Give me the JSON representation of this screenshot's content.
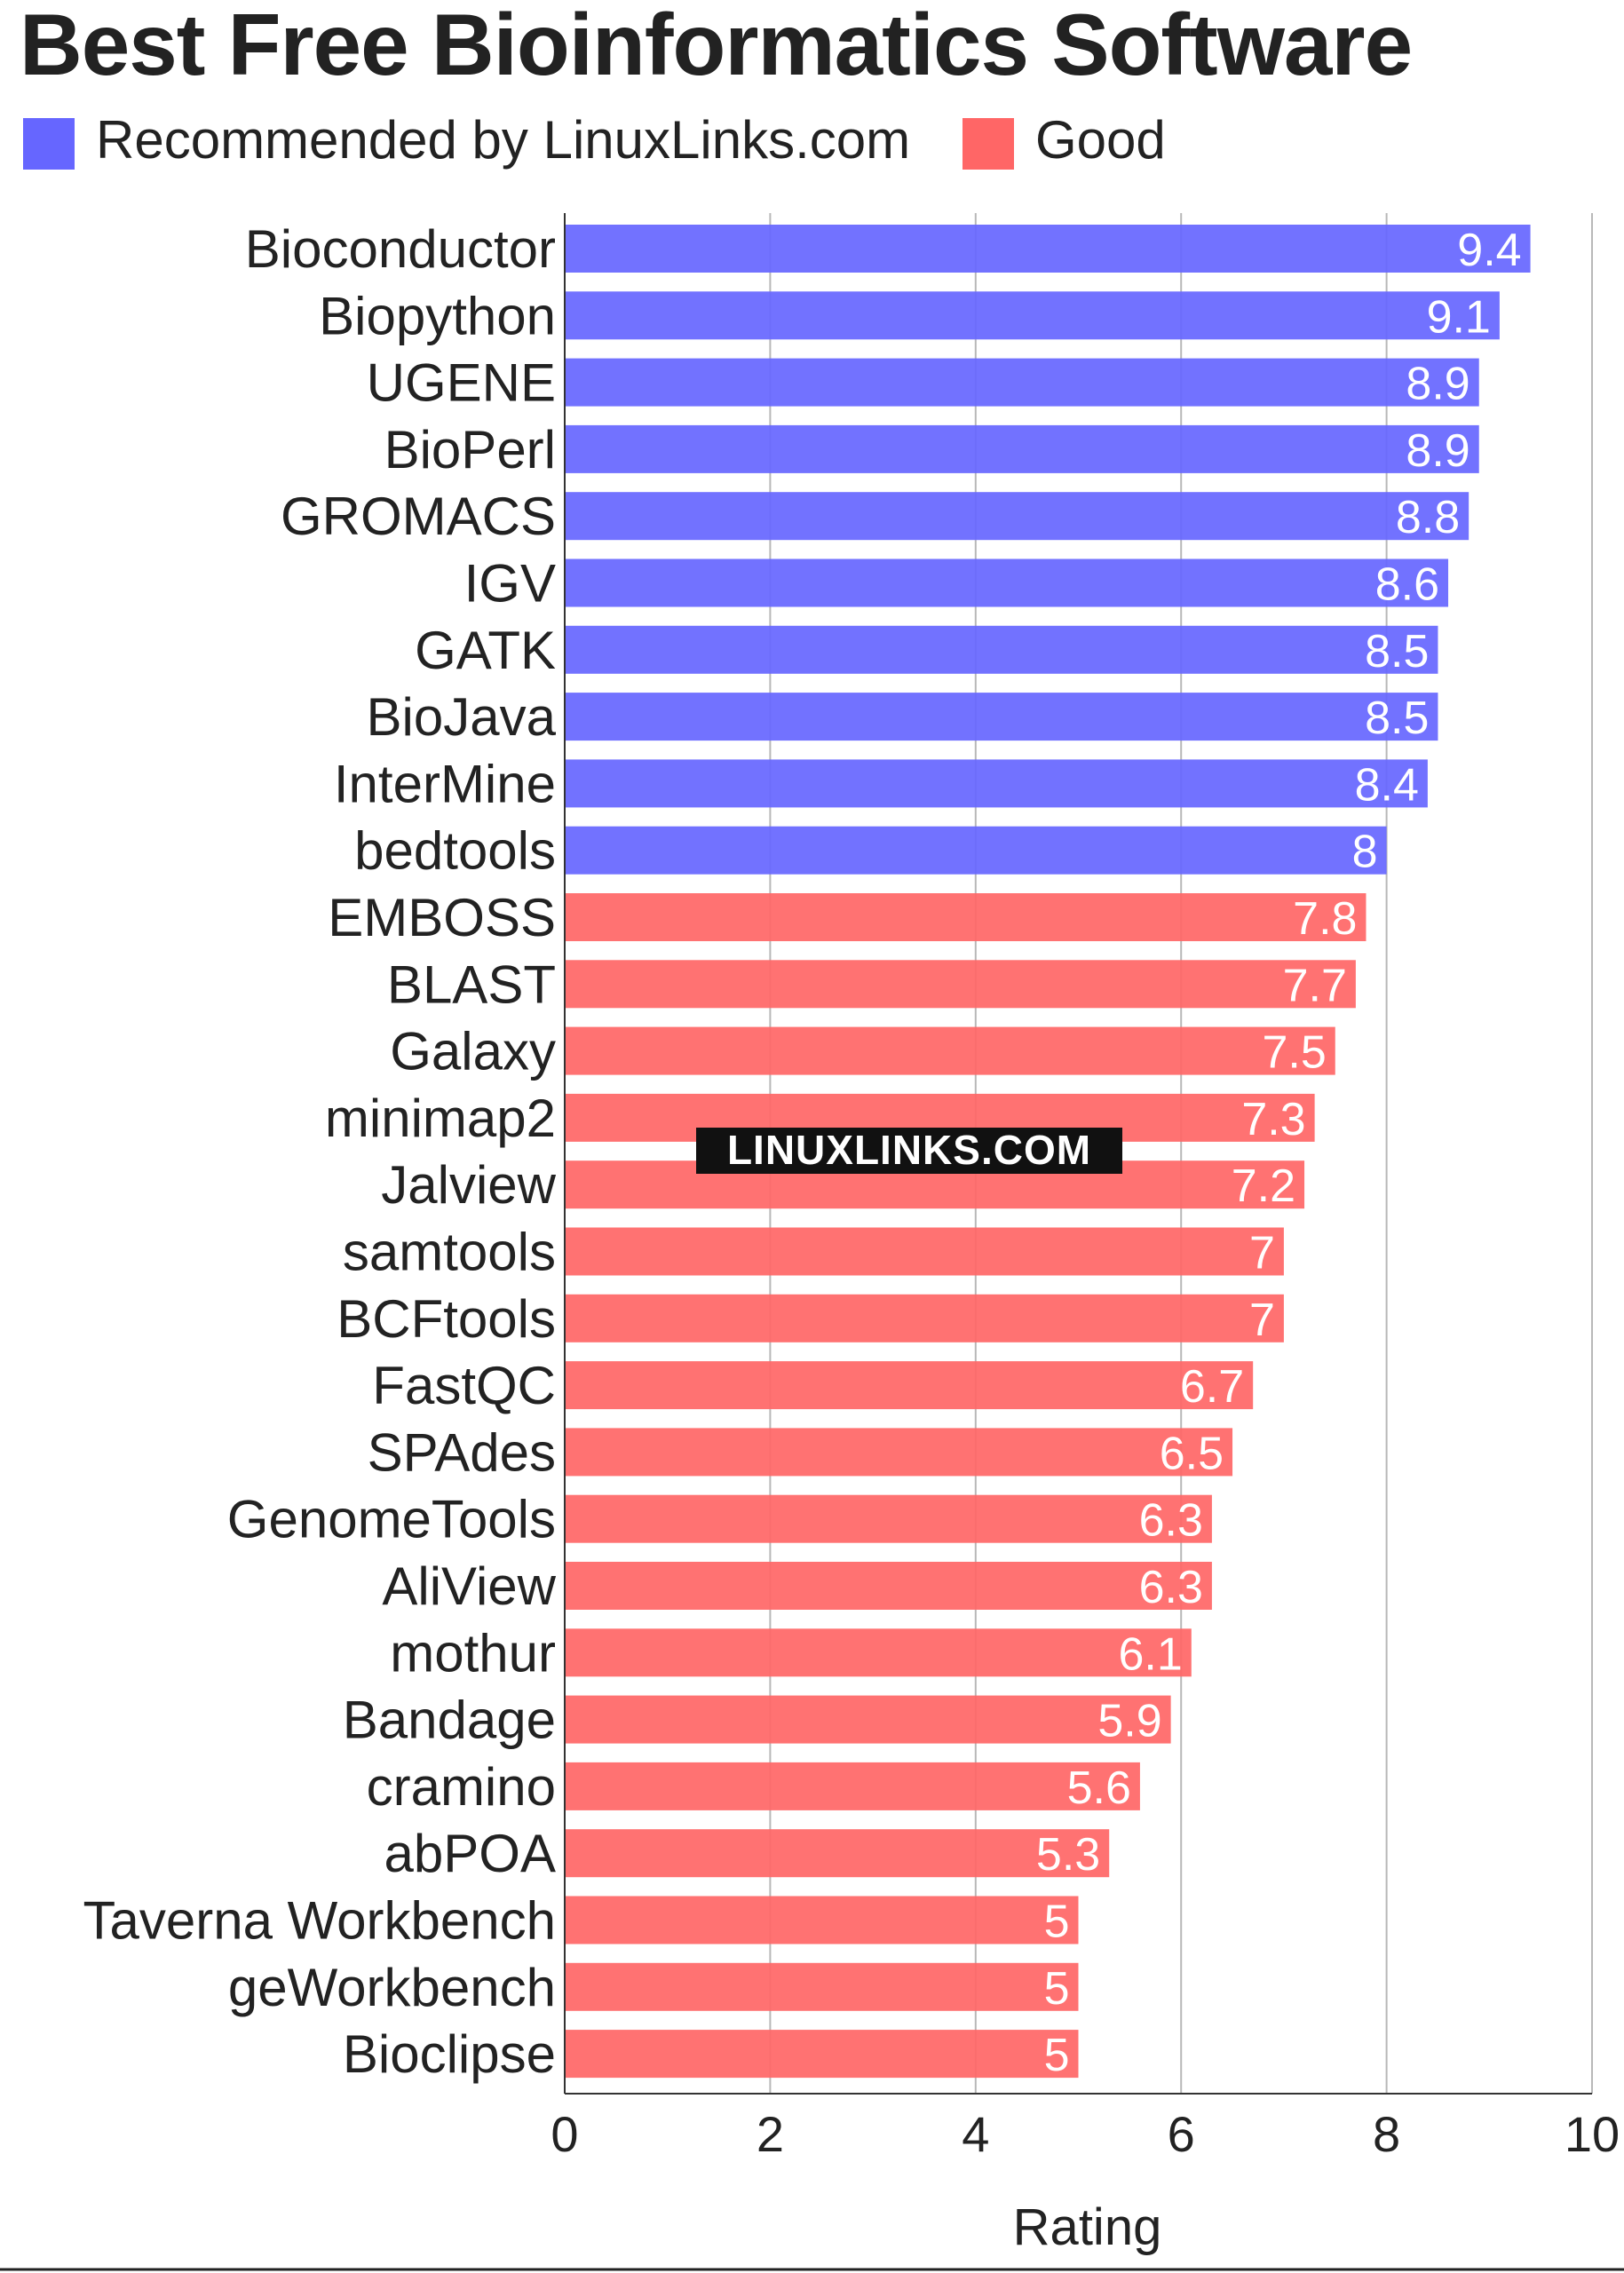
{
  "chart_data": {
    "type": "bar",
    "orientation": "horizontal",
    "title": "Best Free Bioinformatics Software",
    "xlabel": "Rating",
    "ylabel": "",
    "xlim": [
      0,
      10
    ],
    "xticks": [
      0,
      2,
      4,
      6,
      8,
      10
    ],
    "grid": true,
    "legend_position": "top",
    "legend": [
      {
        "label": "Recommended by LinuxLinks.com",
        "color": "#6666ff"
      },
      {
        "label": "Good",
        "color": "#ff6666"
      }
    ],
    "watermark": "LINUXLINKS.COM",
    "categories": [
      "Bioconductor",
      "Biopython",
      "UGENE",
      "BioPerl",
      "GROMACS",
      "IGV",
      "GATK",
      "BioJava",
      "InterMine",
      "bedtools",
      "EMBOSS",
      "BLAST",
      "Galaxy",
      "minimap2",
      "Jalview",
      "samtools",
      "BCFtools",
      "FastQC",
      "SPAdes",
      "GenomeTools",
      "AliView",
      "mothur",
      "Bandage",
      "cramino",
      "abPOA",
      "Taverna Workbench",
      "geWorkbench",
      "Bioclipse"
    ],
    "values": [
      9.4,
      9.1,
      8.9,
      8.9,
      8.8,
      8.6,
      8.5,
      8.5,
      8.4,
      8,
      7.8,
      7.7,
      7.5,
      7.3,
      7.2,
      7,
      7,
      6.7,
      6.5,
      6.3,
      6.3,
      6.1,
      5.9,
      5.6,
      5.3,
      5,
      5,
      5
    ],
    "groups": [
      "Recommended by LinuxLinks.com",
      "Recommended by LinuxLinks.com",
      "Recommended by LinuxLinks.com",
      "Recommended by LinuxLinks.com",
      "Recommended by LinuxLinks.com",
      "Recommended by LinuxLinks.com",
      "Recommended by LinuxLinks.com",
      "Recommended by LinuxLinks.com",
      "Recommended by LinuxLinks.com",
      "Recommended by LinuxLinks.com",
      "Good",
      "Good",
      "Good",
      "Good",
      "Good",
      "Good",
      "Good",
      "Good",
      "Good",
      "Good",
      "Good",
      "Good",
      "Good",
      "Good",
      "Good",
      "Good",
      "Good",
      "Good"
    ]
  }
}
